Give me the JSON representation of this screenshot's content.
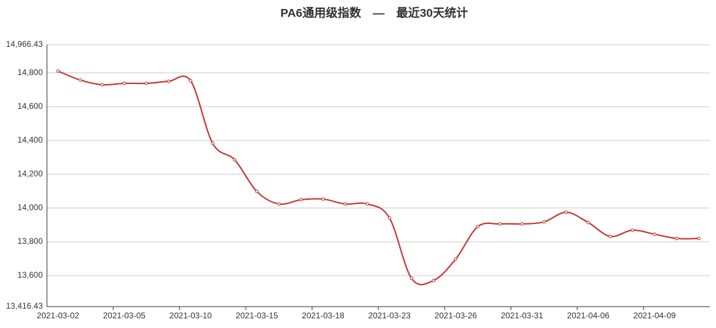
{
  "chart_data": {
    "type": "line",
    "title": "PA6通用级指数　—　最近30天统计",
    "categories": [
      "2021-03-02",
      null,
      null,
      "2021-03-05",
      null,
      null,
      "2021-03-10",
      null,
      null,
      "2021-03-15",
      null,
      null,
      "2021-03-18",
      null,
      null,
      "2021-03-23",
      null,
      null,
      "2021-03-26",
      null,
      null,
      "2021-03-31",
      null,
      null,
      "2021-04-06",
      null,
      null,
      "2021-04-09",
      null,
      null
    ],
    "series": [
      {
        "color": "#c23531",
        "values": [
          14811,
          14758,
          14730,
          14738,
          14738,
          14750,
          14754,
          14383,
          14285,
          14098,
          14024,
          14049,
          14053,
          14024,
          14024,
          13942,
          13584,
          13571,
          13698,
          13890,
          13906,
          13906,
          13918,
          13975,
          13914,
          13832,
          13869,
          13845,
          13820,
          13820
        ]
      }
    ],
    "ylim": [
      13416.43,
      14966.43
    ],
    "yticks": [
      {
        "value": 13416.43,
        "label": "13,416.43"
      },
      {
        "value": 13600,
        "label": "13,600"
      },
      {
        "value": 13800,
        "label": "13,800"
      },
      {
        "value": 14000,
        "label": "14,000"
      },
      {
        "value": 14200,
        "label": "14,200"
      },
      {
        "value": 14400,
        "label": "14,400"
      },
      {
        "value": 14600,
        "label": "14,600"
      },
      {
        "value": 14800,
        "label": "14,800"
      },
      {
        "value": 14966.43,
        "label": "14,966.43"
      }
    ],
    "grid": true,
    "smooth": true
  }
}
